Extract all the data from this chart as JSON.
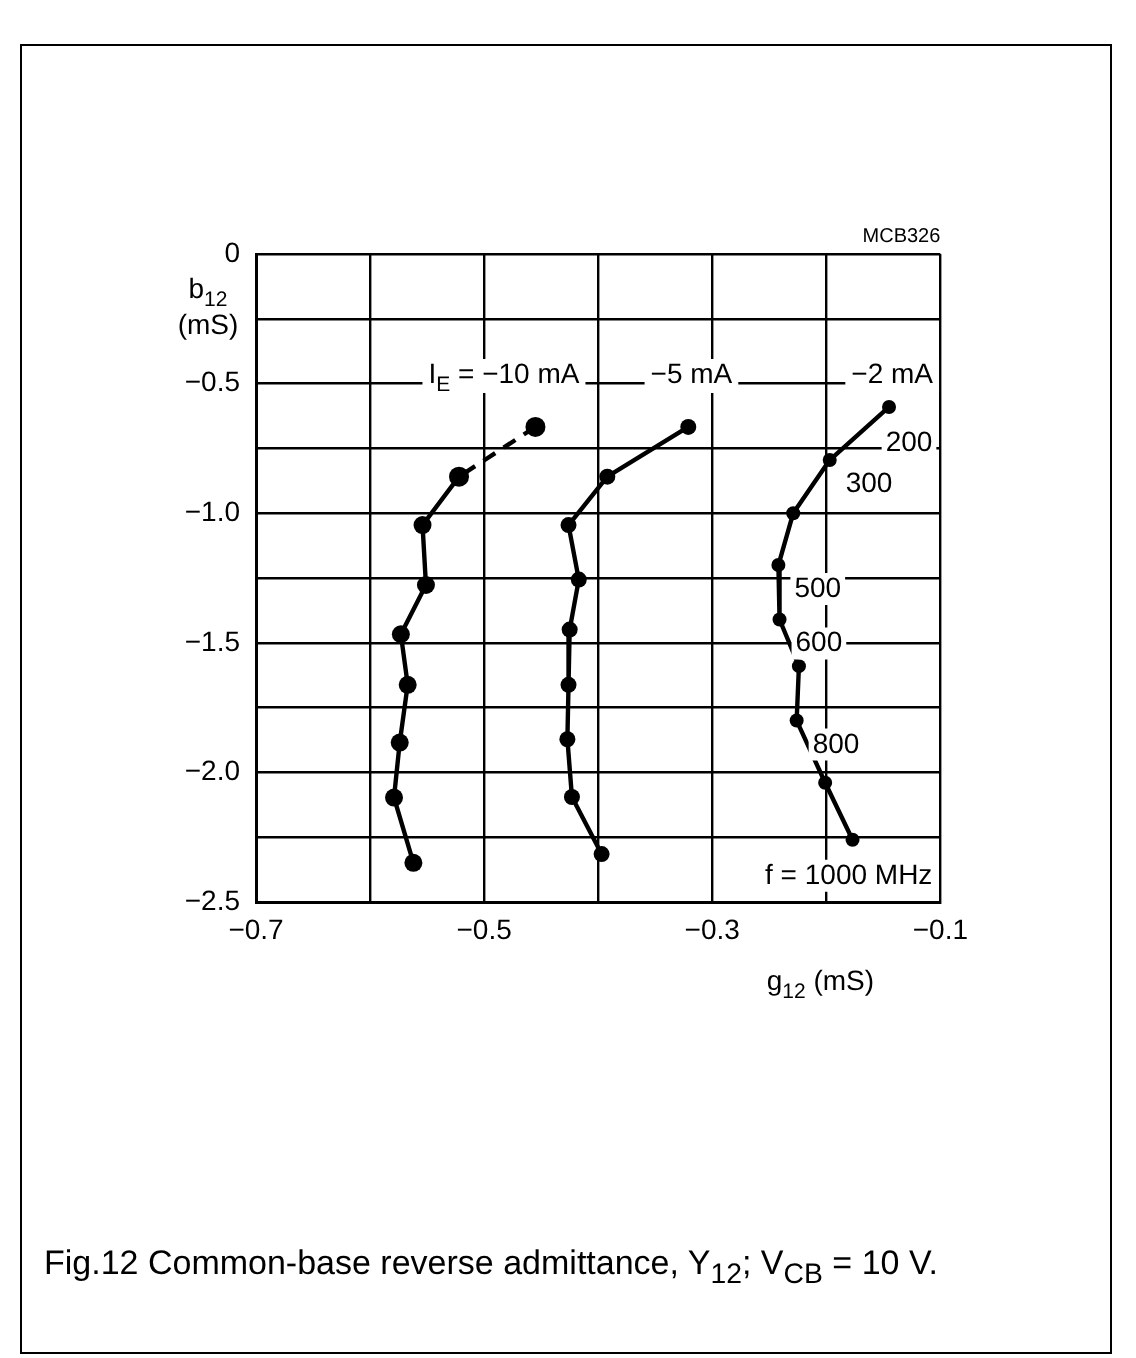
{
  "chart_data": {
    "type": "line",
    "title": "Fig.12 Common-base reverse admittance, Y$_{12}$; V$_{CB}$ = 10 V.",
    "xlabel": "g$_{12}$ (mS)",
    "ylabel": "b$_{12}$ (mS)",
    "xlim": [
      -0.7,
      -0.1
    ],
    "xticks": [
      -0.7,
      {
        "value": -0.6,
        "label": null
      },
      -0.5,
      {
        "value": -0.4,
        "label": null
      },
      -0.3,
      {
        "value": -0.2,
        "label": null
      },
      -0.1
    ],
    "ylim": [
      -2.5,
      0
    ],
    "yticks": [
      {
        "value": -2.5,
        "label": "−2.5"
      },
      {
        "value": -2.25,
        "label": null
      },
      {
        "value": -2,
        "label": "−2.0"
      },
      {
        "value": -1.75,
        "label": null
      },
      {
        "value": -1.5,
        "label": "−1.5"
      },
      {
        "value": -1.25,
        "label": null
      },
      {
        "value": -1,
        "label": "−1.0"
      },
      {
        "value": -0.75,
        "label": null
      },
      {
        "value": -0.5,
        "label": "−0.5"
      },
      {
        "value": -0.25,
        "label": null
      },
      0
    ],
    "grid": true,
    "legend": false,
    "marker": "circle",
    "series": [
      {
        "name": "I$_{E}$ = −10 mA",
        "color": "#000000",
        "line_style": "dashed",
        "x": [
          -0.455,
          -0.522
        ],
        "values": [
          -0.667,
          -0.859
        ]
      },
      {
        "color": "#000000",
        "line_style": "solid",
        "x": [
          -0.522,
          -0.554,
          -0.551,
          -0.573,
          -0.567,
          -0.574,
          -0.579,
          -0.562
        ],
        "values": [
          -0.859,
          -1.046,
          -1.277,
          -1.467,
          -1.662,
          -1.885,
          -2.097,
          -2.349
        ]
      },
      {
        "name": "−5 mA",
        "color": "#000000",
        "line_style": "solid",
        "x": [
          -0.321,
          -0.392,
          -0.426,
          -0.417,
          -0.425,
          -0.426,
          -0.427,
          -0.423,
          -0.397
        ],
        "values": [
          -0.667,
          -0.859,
          -1.046,
          -1.256,
          -1.449,
          -1.662,
          -1.872,
          -2.095,
          -2.315
        ]
      },
      {
        "name": "−2 mA",
        "color": "#000000",
        "line_style": "solid",
        "x": [
          -0.145,
          -0.197,
          -0.229,
          -0.242,
          -0.241,
          -0.224,
          -0.226,
          -0.201,
          -0.177
        ],
        "values": [
          -0.59,
          -0.795,
          -1.0,
          -1.2,
          -1.41,
          -1.59,
          -1.8,
          -2.04,
          -2.26
        ]
      }
    ],
    "annotations": [
      "MCB326",
      {
        "text": "200",
        "x": -0.145,
        "y": -0.59
      },
      {
        "text": "300",
        "x": -0.197,
        "y": -0.795
      },
      {
        "text": "500",
        "x": -0.242,
        "y": -1.2
      },
      {
        "text": "600",
        "x": -0.241,
        "y": -1.41
      },
      {
        "text": "800",
        "x": -0.226,
        "y": -1.8
      },
      {
        "text": "f = 1000 MHz",
        "x": -0.177,
        "y": -2.26
      }
    ]
  }
}
